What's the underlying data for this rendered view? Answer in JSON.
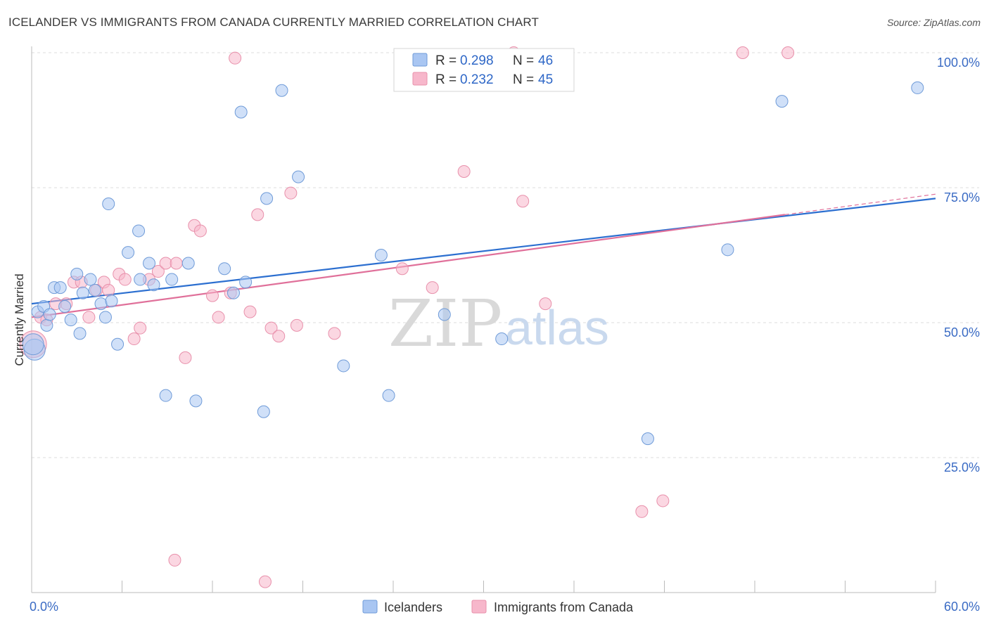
{
  "header": {
    "title": "ICELANDER VS IMMIGRANTS FROM CANADA CURRENTLY MARRIED CORRELATION CHART",
    "source": "Source: ZipAtlas.com"
  },
  "watermark": {
    "zip": "ZIP",
    "atlas": "atlas"
  },
  "legend": {
    "rows": [
      {
        "r_label": "R =",
        "r_value": "0.298",
        "n_label": "N =",
        "n_value": "46",
        "color": "#a9c6f2"
      },
      {
        "r_label": "R =",
        "r_value": "0.232",
        "n_label": "N =",
        "n_value": "45",
        "color": "#f7b7cb"
      }
    ]
  },
  "colors": {
    "blue_fill": "#a9c6f2",
    "blue_stroke": "#6f9bd8",
    "blue_line": "#2c6fd0",
    "pink_fill": "#f7b7cb",
    "pink_stroke": "#e890ab",
    "pink_line": "#e0709a",
    "grid": "#dddddd",
    "tick_label": "#3a6bc4"
  },
  "chart_data": {
    "type": "scatter",
    "title": "ICELANDER VS IMMIGRANTS FROM CANADA CURRENTLY MARRIED CORRELATION CHART",
    "xlabel": "",
    "ylabel": "Currently Married",
    "xlim": [
      0,
      60
    ],
    "ylim": [
      0,
      100
    ],
    "x_tick_labels": [
      "0.0%",
      "60.0%"
    ],
    "y_tick_labels": [
      "25.0%",
      "50.0%",
      "75.0%",
      "100.0%"
    ],
    "y_ticks": [
      25,
      50,
      75,
      100
    ],
    "legend_placement": "top-center",
    "series": [
      {
        "name": "Icelanders",
        "R": 0.298,
        "N": 46,
        "trend": {
          "x0": 0,
          "y0": 53.5,
          "x1": 60,
          "y1": 73.0
        },
        "points": [
          [
            0.2,
            45.0
          ],
          [
            0.4,
            52.0
          ],
          [
            0.8,
            53.0
          ],
          [
            1.0,
            49.5
          ],
          [
            1.2,
            51.5
          ],
          [
            1.5,
            56.5
          ],
          [
            1.9,
            56.5
          ],
          [
            2.2,
            53.0
          ],
          [
            2.6,
            50.5
          ],
          [
            3.0,
            59.0
          ],
          [
            3.2,
            48.0
          ],
          [
            3.4,
            55.5
          ],
          [
            3.9,
            58.0
          ],
          [
            4.2,
            56.0
          ],
          [
            4.6,
            53.5
          ],
          [
            4.9,
            51.0
          ],
          [
            5.1,
            72.0
          ],
          [
            5.3,
            54.0
          ],
          [
            5.7,
            46.0
          ],
          [
            6.4,
            63.0
          ],
          [
            7.1,
            67.0
          ],
          [
            7.2,
            58.0
          ],
          [
            7.8,
            61.0
          ],
          [
            8.1,
            57.0
          ],
          [
            8.9,
            36.5
          ],
          [
            9.3,
            58.0
          ],
          [
            10.4,
            61.0
          ],
          [
            10.9,
            35.5
          ],
          [
            12.8,
            60.0
          ],
          [
            13.4,
            55.5
          ],
          [
            13.9,
            89.0
          ],
          [
            14.2,
            57.5
          ],
          [
            15.4,
            33.5
          ],
          [
            15.6,
            73.0
          ],
          [
            16.6,
            93.0
          ],
          [
            17.7,
            77.0
          ],
          [
            20.7,
            42.0
          ],
          [
            23.2,
            62.5
          ],
          [
            23.7,
            36.5
          ],
          [
            27.4,
            51.5
          ],
          [
            31.2,
            47.0
          ],
          [
            40.9,
            28.5
          ],
          [
            46.2,
            63.5
          ],
          [
            49.8,
            91.0
          ],
          [
            58.8,
            93.5
          ],
          [
            0.1,
            46.0
          ]
        ]
      },
      {
        "name": "Immigrants from Canada",
        "R": 0.232,
        "N": 45,
        "trend": {
          "x0": 0,
          "y0": 51.0,
          "x1": 50,
          "y1": 70.0
        },
        "points": [
          [
            0.1,
            46.0
          ],
          [
            0.6,
            51.0
          ],
          [
            1.0,
            50.5
          ],
          [
            1.6,
            53.5
          ],
          [
            2.3,
            53.5
          ],
          [
            2.8,
            57.5
          ],
          [
            3.3,
            57.5
          ],
          [
            3.8,
            51.0
          ],
          [
            4.3,
            56.0
          ],
          [
            4.8,
            57.5
          ],
          [
            5.1,
            56.0
          ],
          [
            5.8,
            59.0
          ],
          [
            6.2,
            58.0
          ],
          [
            6.8,
            47.0
          ],
          [
            7.2,
            49.0
          ],
          [
            7.8,
            58.0
          ],
          [
            8.4,
            59.5
          ],
          [
            8.9,
            61.0
          ],
          [
            9.6,
            61.0
          ],
          [
            10.2,
            43.5
          ],
          [
            10.8,
            68.0
          ],
          [
            11.2,
            67.0
          ],
          [
            12.0,
            55.0
          ],
          [
            12.4,
            51.0
          ],
          [
            13.2,
            55.5
          ],
          [
            13.5,
            99.0
          ],
          [
            14.5,
            52.0
          ],
          [
            15.0,
            70.0
          ],
          [
            15.5,
            2.0
          ],
          [
            15.9,
            49.0
          ],
          [
            16.4,
            47.5
          ],
          [
            17.2,
            74.0
          ],
          [
            17.6,
            49.5
          ],
          [
            20.1,
            48.0
          ],
          [
            24.6,
            60.0
          ],
          [
            26.6,
            56.5
          ],
          [
            28.7,
            78.0
          ],
          [
            32.6,
            72.5
          ],
          [
            34.1,
            53.5
          ],
          [
            40.5,
            15.0
          ],
          [
            41.9,
            17.0
          ],
          [
            47.2,
            100.0
          ],
          [
            50.2,
            100.0
          ],
          [
            32.0,
            100.0
          ],
          [
            9.5,
            6.0
          ]
        ]
      }
    ]
  },
  "bottom_legend": {
    "items": [
      {
        "label": "Icelanders"
      },
      {
        "label": "Immigrants from Canada"
      }
    ]
  }
}
